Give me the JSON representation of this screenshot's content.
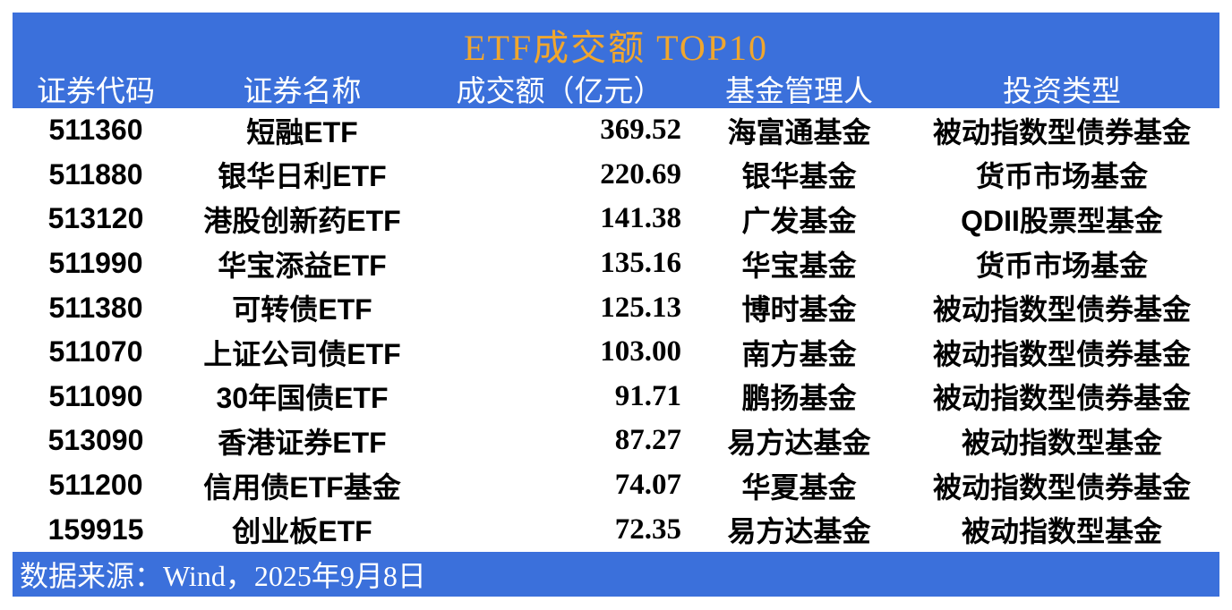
{
  "table": {
    "title": "ETF成交额 TOP10",
    "columns": [
      "证券代码",
      "证券名称",
      "成交额（亿元）",
      "基金管理人",
      "投资类型"
    ],
    "rows": [
      {
        "code": "511360",
        "name": "短融ETF",
        "turnover": "369.52",
        "manager": "海富通基金",
        "type": "被动指数型债券基金"
      },
      {
        "code": "511880",
        "name": "银华日利ETF",
        "turnover": "220.69",
        "manager": "银华基金",
        "type": "货币市场基金"
      },
      {
        "code": "513120",
        "name": "港股创新药ETF",
        "turnover": "141.38",
        "manager": "广发基金",
        "type": "QDII股票型基金"
      },
      {
        "code": "511990",
        "name": "华宝添益ETF",
        "turnover": "135.16",
        "manager": "华宝基金",
        "type": "货币市场基金"
      },
      {
        "code": "511380",
        "name": "可转债ETF",
        "turnover": "125.13",
        "manager": "博时基金",
        "type": "被动指数型债券基金"
      },
      {
        "code": "511070",
        "name": "上证公司债ETF",
        "turnover": "103.00",
        "manager": "南方基金",
        "type": "被动指数型债券基金"
      },
      {
        "code": "511090",
        "name": "30年国债ETF",
        "turnover": "91.71",
        "manager": "鹏扬基金",
        "type": "被动指数型债券基金"
      },
      {
        "code": "513090",
        "name": "香港证券ETF",
        "turnover": "87.27",
        "manager": "易方达基金",
        "type": "被动指数型基金"
      },
      {
        "code": "511200",
        "name": "信用债ETF基金",
        "turnover": "74.07",
        "manager": "华夏基金",
        "type": "被动指数型债券基金"
      },
      {
        "code": "159915",
        "name": "创业板ETF",
        "turnover": "72.35",
        "manager": "易方达基金",
        "type": "被动指数型基金"
      }
    ]
  },
  "footer": {
    "source_note": "数据来源：Wind，2025年9月8日"
  },
  "colors": {
    "bar_background": "#3B70DB",
    "title_gold": "#F0A62E",
    "header_text": "#FFFFFF",
    "body_text": "#000000"
  },
  "chart_data": {
    "type": "table",
    "title": "ETF成交额 TOP10",
    "columns": [
      "证券代码",
      "证券名称",
      "成交额（亿元）",
      "基金管理人",
      "投资类型"
    ],
    "rows": [
      [
        "511360",
        "短融ETF",
        369.52,
        "海富通基金",
        "被动指数型债券基金"
      ],
      [
        "511880",
        "银华日利ETF",
        220.69,
        "银华基金",
        "货币市场基金"
      ],
      [
        "513120",
        "港股创新药ETF",
        141.38,
        "广发基金",
        "QDII股票型基金"
      ],
      [
        "511990",
        "华宝添益ETF",
        135.16,
        "华宝基金",
        "货币市场基金"
      ],
      [
        "511380",
        "可转债ETF",
        125.13,
        "博时基金",
        "被动指数型债券基金"
      ],
      [
        "511070",
        "上证公司债ETF",
        103.0,
        "南方基金",
        "被动指数型债券基金"
      ],
      [
        "511090",
        "30年国债ETF",
        91.71,
        "鹏扬基金",
        "被动指数型债券基金"
      ],
      [
        "513090",
        "香港证券ETF",
        87.27,
        "易方达基金",
        "被动指数型基金"
      ],
      [
        "511200",
        "信用债ETF基金",
        74.07,
        "华夏基金",
        "被动指数型债券基金"
      ],
      [
        "159915",
        "创业板ETF",
        72.35,
        "易方达基金",
        "被动指数型基金"
      ]
    ],
    "source_note": "数据来源：Wind，2025年9月8日",
    "layout": {
      "header_position": "top",
      "grid": false,
      "value_alignment": "right"
    }
  }
}
